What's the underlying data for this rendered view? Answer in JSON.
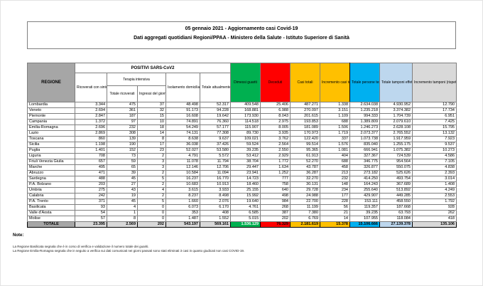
{
  "title": {
    "line1": "05 gennaio 2021 - Aggiornamento casi Covid-19",
    "line2": "Dati aggregati quotidiani Regioni/PPAA - Ministero della Salute - Istituto Superiore di Sanità"
  },
  "colors": {
    "header_gray": "#a6a6a6",
    "green": "#00b050",
    "red": "#ff0000",
    "amber": "#ffc000",
    "cyan": "#00b0f0",
    "periwinkle": "#bdd7ee",
    "light_gray": "#d9d9d9"
  },
  "table": {
    "region_header": "REGIONE",
    "positivi_header": "POSITIVI SARS-CoV2",
    "terapia_header": "Terapia intensiva",
    "columns": [
      {
        "label": "Ricoverati con sintomi",
        "color": "#ffffff"
      },
      {
        "label": "Totale ricoverati",
        "color": "#ffffff"
      },
      {
        "label": "Ingressi del giorno",
        "color": "#ffffff"
      },
      {
        "label": "Isolamento domiciliare",
        "color": "#ffffff"
      },
      {
        "label": "Totale attualmente positivi",
        "color": "#ffffff"
      },
      {
        "label": "Dimessi guariti",
        "color": "#00b050"
      },
      {
        "label": "Deceduti",
        "color": "#ff0000"
      },
      {
        "label": "Casi totali",
        "color": "#ffc000"
      },
      {
        "label": "Incremento casi totali (rispetto al giorno precedente)",
        "color": "#ffc000"
      },
      {
        "label": "Totale persone testate",
        "color": "#00b0f0"
      },
      {
        "label": "Totale tamponi effettuati (processati con test molecolari)",
        "color": "#bdd7ee"
      },
      {
        "label": "Incremento tamponi (rispetto al giorno precedente)",
        "color": "#d9d9d9"
      }
    ],
    "rows": [
      {
        "region": "Lombardia",
        "values": [
          "3.344",
          "475",
          "37",
          "48.498",
          "52.317",
          "409.548",
          "25.406",
          "487.271",
          "1.338",
          "2.634.038",
          "4.930.952",
          "12.790"
        ]
      },
      {
        "region": "Veneto",
        "values": [
          "2.694",
          "361",
          "32",
          "91.173",
          "94.228",
          "168.881",
          "6.988",
          "270.097",
          "3.151",
          "1.235.218",
          "3.374.382",
          "17.734"
        ]
      },
      {
        "region": "Piemonte",
        "values": [
          "2.847",
          "187",
          "15",
          "16.608",
          "19.642",
          "173.930",
          "8.043",
          "201.615",
          "1.109",
          "994.333",
          "1.704.739",
          "6.951"
        ]
      },
      {
        "region": "Campania",
        "values": [
          "1.372",
          "97",
          "10",
          "74.891",
          "76.360",
          "114.518",
          "2.975",
          "193.853",
          "688",
          "1.389.809",
          "2.079.610",
          "7.425"
        ]
      },
      {
        "region": "Emilia-Romagna",
        "values": [
          "2.696",
          "232",
          "18",
          "54.249",
          "57.177",
          "115.907",
          "8.005",
          "181.089",
          "1.506",
          "1.246.273",
          "2.628.108",
          "15.795"
        ]
      },
      {
        "region": "Lazio",
        "values": [
          "2.869",
          "308",
          "14",
          "74.131",
          "77.308",
          "89.730",
          "3.935",
          "170.973",
          "1.719",
          "2.073.377",
          "2.765.552",
          "13.132"
        ]
      },
      {
        "region": "Toscana",
        "values": [
          "860",
          "139",
          "8",
          "8.638",
          "9.637",
          "109.021",
          "3.762",
          "122.420",
          "337",
          "1.073.738",
          "1.917.959",
          "7.923"
        ]
      },
      {
        "region": "Sicilia",
        "values": [
          "1.198",
          "190",
          "17",
          "36.038",
          "37.426",
          "59.524",
          "2.564",
          "99.514",
          "1.576",
          "835.040",
          "1.255.175",
          "9.537"
        ]
      },
      {
        "region": "Puglia",
        "values": [
          "1.401",
          "152",
          "23",
          "52.027",
          "53.580",
          "39.235",
          "2.550",
          "95.365",
          "1.081",
          "666.941",
          "1.075.382",
          "10.273"
        ]
      },
      {
        "region": "Liguria",
        "values": [
          "708",
          "73",
          "2",
          "4.791",
          "5.572",
          "53.412",
          "2.929",
          "61.913",
          "404",
          "327.367",
          "724.539",
          "4.586"
        ]
      },
      {
        "region": "Friuli Venezia Giulia",
        "values": [
          "657",
          "59",
          "3",
          "11.078",
          "11.794",
          "38.704",
          "1.772",
          "52.270",
          "688",
          "346.775",
          "954.564",
          "7.105"
        ]
      },
      {
        "region": "Marche",
        "values": [
          "495",
          "65",
          "3",
          "12.146",
          "12.706",
          "29.447",
          "1.634",
          "43.787",
          "458",
          "326.877",
          "550.075",
          "4.838"
        ]
      },
      {
        "region": "Abruzzo",
        "values": [
          "471",
          "39",
          "2",
          "10.584",
          "11.094",
          "23.941",
          "1.252",
          "36.287",
          "213",
          "273.182",
          "525.626",
          "2.393"
        ]
      },
      {
        "region": "Sardegna",
        "values": [
          "488",
          "45",
          "5",
          "16.237",
          "16.770",
          "14.723",
          "777",
          "32.270",
          "232",
          "414.250",
          "493.754",
          "3.014"
        ]
      },
      {
        "region": "P.A. Bolzano",
        "values": [
          "203",
          "27",
          "2",
          "10.683",
          "10.913",
          "18.460",
          "758",
          "30.131",
          "148",
          "164.243",
          "367.689",
          "1.408"
        ]
      },
      {
        "region": "Umbria",
        "values": [
          "275",
          "43",
          "4",
          "3.615",
          "3.933",
          "25.155",
          "640",
          "29.728",
          "234",
          "255.640",
          "513.892",
          "4.249"
        ]
      },
      {
        "region": "Calabria",
        "values": [
          "242",
          "19",
          "2",
          "8.237",
          "8.498",
          "15.992",
          "498",
          "24.988",
          "177",
          "429.907",
          "449.285",
          "2.553"
        ]
      },
      {
        "region": "P.A. Trento",
        "values": [
          "371",
          "45",
          "5",
          "1.660",
          "2.076",
          "19.640",
          "984",
          "22.700",
          "228",
          "153.111",
          "458.550",
          "1.792"
        ]
      },
      {
        "region": "Basilicata",
        "values": [
          "93",
          "4",
          "0",
          "6.073",
          "6.170",
          "4.761",
          "268",
          "11.199",
          "56",
          "119.357",
          "187.668",
          "928"
        ]
      },
      {
        "region": "Valle d'Aosta",
        "values": [
          "54",
          "1",
          "0",
          "353",
          "408",
          "6.585",
          "387",
          "7.380",
          "21",
          "39.235",
          "63.793",
          "262"
        ]
      },
      {
        "region": "Molise",
        "values": [
          "57",
          "8",
          "0",
          "1.487",
          "1.552",
          "5.015",
          "202",
          "6.769",
          "14",
          "107.955",
          "118.084",
          "418"
        ]
      }
    ],
    "total_row": {
      "region": "TOTALE",
      "values": [
        "23.395",
        "2.569",
        "202",
        "543.197",
        "569.161",
        "1.536.129",
        "76.329",
        "2.181.619",
        "15.378",
        "15.106.666",
        "27.139.378",
        "135.106"
      ]
    }
  },
  "notes": {
    "label": "Note:",
    "items": [
      "La Regione Basilicata segnala che è in corso di verifica e validazione il numero totale dei guariti.",
      "La Regione Emilia-Romagna segnala che in seguito a verifica sui dati comunicati nei giorni passati sono stati eliminati 3 casi in quanto giudicati non casi COVID-19."
    ]
  }
}
